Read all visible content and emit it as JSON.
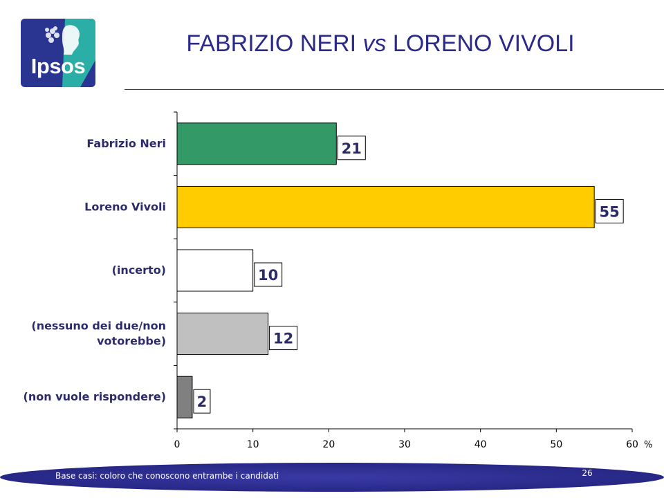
{
  "header": {
    "logo_text": "Ipsos",
    "title_part1": "FABRIZIO NERI ",
    "title_vs": "vs",
    "title_part2": " LORENO VIVOLI"
  },
  "colors": {
    "title": "#2b2a8a",
    "logo_blue": "#2a3592",
    "logo_teal": "#2aaea6",
    "footer_band": "#2a2a8e"
  },
  "chart_data": {
    "type": "bar",
    "orientation": "horizontal",
    "categories": [
      [
        "Fabrizio Neri"
      ],
      [
        "Loreno Vivoli"
      ],
      [
        "(incerto)"
      ],
      [
        "(nessuno dei due/non",
        "votorebbe)"
      ],
      [
        "(non vuole rispondere)"
      ]
    ],
    "values": [
      21,
      55,
      10,
      12,
      2
    ],
    "value_labels": [
      "21",
      "55",
      "10",
      "12",
      "2"
    ],
    "bar_colors": [
      "#339966",
      "#ffcc00",
      "#ffffff",
      "#c0c0c0",
      "#808080"
    ],
    "xlim": [
      0,
      60
    ],
    "xticks": [
      0,
      10,
      20,
      30,
      40,
      50,
      60
    ],
    "tick_labels": [
      "0",
      "10",
      "20",
      "30",
      "40",
      "50",
      "60"
    ],
    "unit_label": "%",
    "grid": false,
    "legend": "none"
  },
  "footer": {
    "base_note": "Base casi: coloro che conoscono entrambe i candidati",
    "page_number": "26"
  }
}
